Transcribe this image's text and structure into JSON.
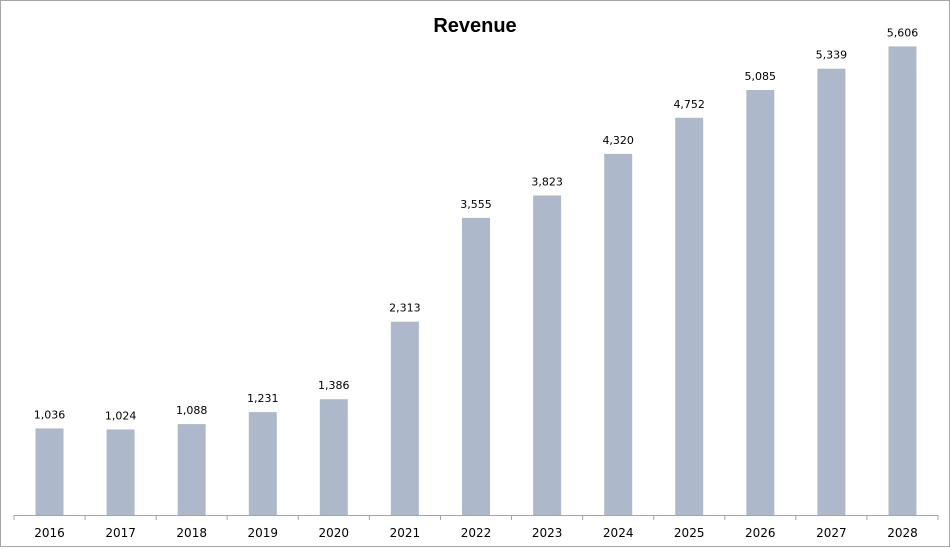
{
  "chart_data": {
    "type": "bar",
    "title": "Revenue",
    "xlabel": "",
    "ylabel": "",
    "categories": [
      "2016",
      "2017",
      "2018",
      "2019",
      "2020",
      "2021",
      "2022",
      "2023",
      "2024",
      "2025",
      "2026",
      "2027",
      "2028"
    ],
    "values": [
      1036,
      1024,
      1088,
      1231,
      1386,
      2313,
      3555,
      3823,
      4320,
      4752,
      5085,
      5339,
      5606
    ],
    "data_labels": [
      "1,036",
      "1,024",
      "1,088",
      "1,231",
      "1,386",
      "2,313",
      "3,555",
      "3,823",
      "4,320",
      "4,752",
      "5,085",
      "5,339",
      "5,606"
    ],
    "ylim": [
      0,
      6000
    ],
    "grid": false,
    "legend": "none",
    "bar_color": "#adb9ca",
    "axis_color": "#a6a6a6"
  }
}
